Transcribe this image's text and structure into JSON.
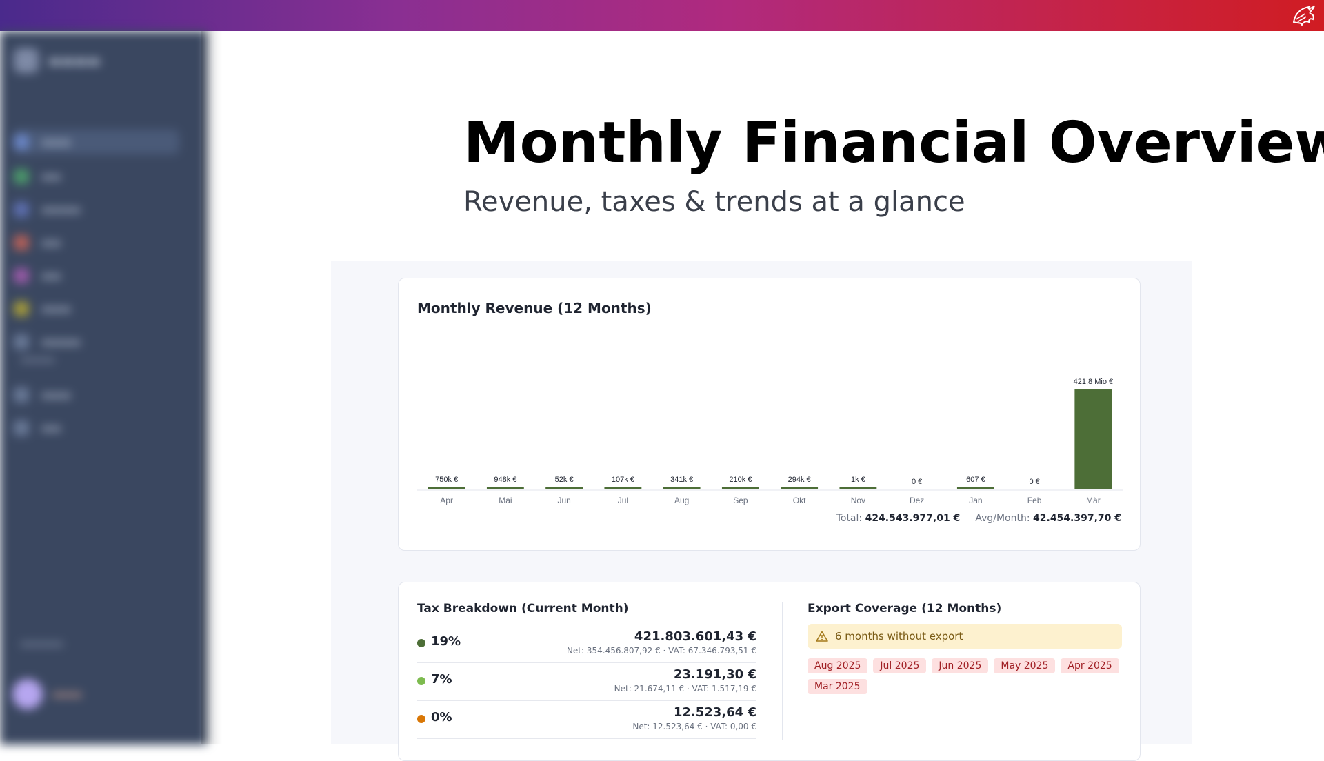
{
  "header": {
    "logo_icon": "dragon-logo-icon",
    "gradient": [
      "#4a2a8c",
      "#d01c22"
    ]
  },
  "sidebar": {
    "note": "",
    "items": [
      {
        "icon": "grid-icon"
      },
      {
        "icon": "chart-icon"
      },
      {
        "icon": "document-icon"
      },
      {
        "icon": "tag-icon"
      },
      {
        "icon": "box-icon"
      },
      {
        "icon": "folder-icon"
      },
      {
        "icon": "settings-icon"
      }
    ]
  },
  "hero": {
    "title": "Monthly Financial Overview",
    "subtitle": "Revenue, taxes & trends at a glance"
  },
  "revenue": {
    "title": "Monthly Revenue (12 Months)",
    "total_label": "Total:",
    "total_value": "424.543.977,01 €",
    "avg_label": "Avg/Month:",
    "avg_value": "42.454.397,70 €"
  },
  "chart_data": {
    "type": "bar",
    "title": "Monthly Revenue (12 Months)",
    "categories": [
      "Apr",
      "Mai",
      "Jun",
      "Jul",
      "Aug",
      "Sep",
      "Okt",
      "Nov",
      "Dez",
      "Jan",
      "Feb",
      "Mär"
    ],
    "values": [
      750000,
      948000,
      52000,
      107000,
      341000,
      210000,
      294000,
      1000,
      0,
      607,
      0,
      421800000
    ],
    "value_labels": [
      "750k €",
      "948k €",
      "52k €",
      "107k €",
      "341k €",
      "210k €",
      "294k €",
      "1k €",
      "0 €",
      "607 €",
      "0 €",
      "421,8 Mio €"
    ],
    "bar_color": "#4d6e37",
    "xlabel": "",
    "ylabel": ""
  },
  "tax": {
    "title": "Tax Breakdown (Current Month)",
    "rows": [
      {
        "rate": "19%",
        "color": "#4d6e37",
        "amount": "421.803.601,43 €",
        "detail": "Net: 354.456.807,92 € · VAT: 67.346.793,51 €"
      },
      {
        "rate": "7%",
        "color": "#7dbb4f",
        "amount": "23.191,30 €",
        "detail": "Net: 21.674,11 € · VAT: 1.517,19 €"
      },
      {
        "rate": "0%",
        "color": "#d97706",
        "amount": "12.523,64 €",
        "detail": "Net: 12.523,64 € · VAT: 0,00 €"
      }
    ]
  },
  "export": {
    "title": "Export Coverage (12 Months)",
    "warning_icon": "warning-triangle-icon",
    "warning": "6 months without export",
    "missing": [
      "Aug 2025",
      "Jul 2025",
      "Jun 2025",
      "May 2025",
      "Apr 2025",
      "Mar 2025"
    ]
  }
}
